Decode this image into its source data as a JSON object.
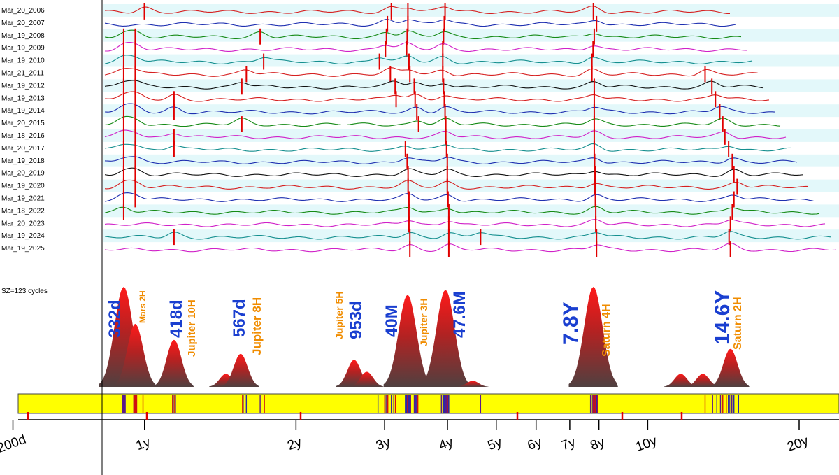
{
  "chart_data": {
    "type": "line",
    "x_scale": "log",
    "x_unit": "days",
    "x_tick_labels": [
      {
        "label": "200d",
        "days": 200
      },
      {
        "label": "1y",
        "days": 365.25
      },
      {
        "label": "2y",
        "days": 730.5
      },
      {
        "label": "3y",
        "days": 1095.75
      },
      {
        "label": "4y",
        "days": 1461
      },
      {
        "label": "5y",
        "days": 1826.25
      },
      {
        "label": "6y",
        "days": 2191.5
      },
      {
        "label": "7y",
        "days": 2556.75
      },
      {
        "label": "8y",
        "days": 2922
      },
      {
        "label": "10y",
        "days": 3652.5
      },
      {
        "label": "20y",
        "days": 7305
      }
    ],
    "series_labels": [
      "Mar_20_2006",
      "Mar_20_2007",
      "Mar_19_2008",
      "Mar_19_2009",
      "Mar_19_2010",
      "Mar_21_2011",
      "Mar_19_2012",
      "Mar_19_2013",
      "Mar_19_2014",
      "Mar_20_2015",
      "Mar_18_2016",
      "Mar_20_2017",
      "Mar_19_2018",
      "Mar_20_2019",
      "Mar_19_2020",
      "Mar_19_2021",
      "Mar_18_2022",
      "Mar_20_2023",
      "Mar_19_2024",
      "Mar_19_2025"
    ],
    "series_colors": [
      "#d62020",
      "#1e2fb0",
      "#158a15",
      "#d020c8",
      "#158f8f",
      "#d62020",
      "#111111",
      "#d62020",
      "#1e2fb0",
      "#158a15",
      "#d020c8",
      "#158f8f",
      "#1e2fb0",
      "#111111",
      "#d62020",
      "#1e2fb0",
      "#158a15",
      "#d020c8",
      "#158f8f",
      "#d020c8"
    ],
    "sample_note": "SZ=123 cycles",
    "peaks": [
      {
        "period": "332d",
        "planet": "Mars 2H",
        "days": 332,
        "height": 1.0
      },
      {
        "period": "",
        "planet": "",
        "days": 350,
        "height": 0.63
      },
      {
        "period": "418d",
        "planet": "Jupiter 10H",
        "days": 418,
        "height": 0.47
      },
      {
        "period": "",
        "planet": "",
        "days": 530,
        "height": 0.13
      },
      {
        "period": "567d",
        "planet": "Jupiter 8H",
        "days": 567,
        "height": 0.33
      },
      {
        "period": "953d",
        "planet": "Jupiter 5H",
        "days": 953,
        "height": 0.27
      },
      {
        "period": "",
        "planet": "",
        "days": 1010,
        "height": 0.15
      },
      {
        "period": "40M",
        "planet": "Jupiter 3H",
        "days": 1217,
        "height": 0.92
      },
      {
        "period": "47.6M",
        "planet": "",
        "days": 1448,
        "height": 0.97
      },
      {
        "period": "",
        "planet": "",
        "days": 1640,
        "height": 0.06
      },
      {
        "period": "7.8Y",
        "planet": "Saturn 4H",
        "days": 2849,
        "height": 1.0
      },
      {
        "period": "",
        "planet": "",
        "days": 4250,
        "height": 0.13
      },
      {
        "period": "",
        "planet": "",
        "days": 4700,
        "height": 0.13
      },
      {
        "period": "14.6Y",
        "planet": "Saturn 2H",
        "days": 5333,
        "height": 0.38
      }
    ],
    "yearly_peak_days": [
      [
        365,
        1130,
        1219,
        1445,
        2849
      ],
      [
        1110,
        1219,
        1440,
        2890
      ],
      [
        332,
        350,
        620,
        1105,
        1215,
        1435,
        2860
      ],
      [
        332,
        350,
        1100,
        1212,
        1430,
        2845
      ],
      [
        332,
        350,
        630,
        1070,
        1225,
        1430,
        2830
      ],
      [
        332,
        350,
        582,
        1125,
        1230,
        1430,
        2830,
        4750
      ],
      [
        332,
        350,
        570,
        1150,
        1255,
        1435,
        2860,
        4900
      ],
      [
        332,
        350,
        418,
        1155,
        1260,
        1440,
        2860,
        4980
      ],
      [
        332,
        350,
        418,
        1270,
        1445,
        2860,
        5080
      ],
      [
        332,
        350,
        570,
        1280,
        1450,
        2860,
        5150
      ],
      [
        332,
        350,
        418,
        1450,
        2860,
        5200
      ],
      [
        332,
        350,
        418,
        1205,
        1455,
        2860,
        5290
      ],
      [
        332,
        350,
        1215,
        1460,
        2865,
        5380
      ],
      [
        332,
        350,
        1220,
        1460,
        2870,
        5420
      ],
      [
        332,
        350,
        1220,
        1460,
        2870,
        5500
      ],
      [
        332,
        350,
        1225,
        1465,
        2875,
        5420
      ],
      [
        332,
        1225,
        1470,
        2880,
        5380
      ],
      [
        1225,
        1470,
        2880,
        5333
      ],
      [
        418,
        1230,
        1470,
        1700,
        2890,
        5300
      ],
      [
        1230,
        1470,
        2890,
        5333
      ]
    ],
    "legend": "none",
    "grid": false
  }
}
